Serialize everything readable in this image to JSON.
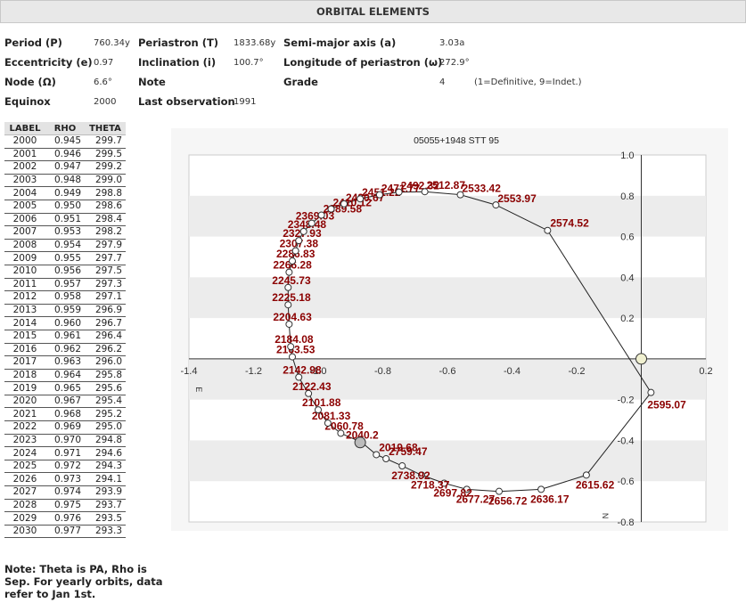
{
  "header": {
    "title": "ORBITAL ELEMENTS"
  },
  "elements": {
    "period_label": "Period (P)",
    "period_value": "760.34y",
    "periastron_label": "Periastron (T)",
    "periastron_value": "1833.68y",
    "semimajor_label": "Semi-major axis (a)",
    "semimajor_value": "3.03a",
    "ecc_label": "Eccentricity (e)",
    "ecc_value": "0.97",
    "incl_label": "Inclination (i)",
    "incl_value": "100.7°",
    "longperi_label": "Longitude of periastron (ω)",
    "longperi_value": "272.9°",
    "node_label": "Node (Ω)",
    "node_value": "6.6°",
    "note_label": "Note",
    "note_value": "",
    "grade_label": "Grade",
    "grade_value": "4",
    "grade_note": "(1=Definitive, 9=Indet.)",
    "equinox_label": "Equinox",
    "equinox_value": "2000",
    "lastobs_label": "Last observation",
    "lastobs_value": "1991"
  },
  "ephemeris": {
    "headers": [
      "LABEL",
      "RHO",
      "THETA"
    ],
    "rows": [
      [
        "2000",
        "0.945",
        "299.7"
      ],
      [
        "2001",
        "0.946",
        "299.5"
      ],
      [
        "2002",
        "0.947",
        "299.2"
      ],
      [
        "2003",
        "0.948",
        "299.0"
      ],
      [
        "2004",
        "0.949",
        "298.8"
      ],
      [
        "2005",
        "0.950",
        "298.6"
      ],
      [
        "2006",
        "0.951",
        "298.4"
      ],
      [
        "2007",
        "0.953",
        "298.2"
      ],
      [
        "2008",
        "0.954",
        "297.9"
      ],
      [
        "2009",
        "0.955",
        "297.7"
      ],
      [
        "2010",
        "0.956",
        "297.5"
      ],
      [
        "2011",
        "0.957",
        "297.3"
      ],
      [
        "2012",
        "0.958",
        "297.1"
      ],
      [
        "2013",
        "0.959",
        "296.9"
      ],
      [
        "2014",
        "0.960",
        "296.7"
      ],
      [
        "2015",
        "0.961",
        "296.4"
      ],
      [
        "2016",
        "0.962",
        "296.2"
      ],
      [
        "2017",
        "0.963",
        "296.0"
      ],
      [
        "2018",
        "0.964",
        "295.8"
      ],
      [
        "2019",
        "0.965",
        "295.6"
      ],
      [
        "2020",
        "0.967",
        "295.4"
      ],
      [
        "2021",
        "0.968",
        "295.2"
      ],
      [
        "2022",
        "0.969",
        "295.0"
      ],
      [
        "2023",
        "0.970",
        "294.8"
      ],
      [
        "2024",
        "0.971",
        "294.6"
      ],
      [
        "2025",
        "0.972",
        "294.3"
      ],
      [
        "2026",
        "0.973",
        "294.1"
      ],
      [
        "2027",
        "0.974",
        "293.9"
      ],
      [
        "2028",
        "0.975",
        "293.7"
      ],
      [
        "2029",
        "0.976",
        "293.5"
      ],
      [
        "2030",
        "0.977",
        "293.3"
      ]
    ]
  },
  "note": "Note: Theta is PA, Rho is Sep. For yearly orbits, data refer to Jan 1st.",
  "chart_data": {
    "type": "scatter",
    "title": "05055+1948 STT  95",
    "xlim": [
      -1.4,
      0.2
    ],
    "ylim": [
      -0.8,
      1.0
    ],
    "x_ticks": [
      "-1.4",
      "-1.2",
      "-1.0",
      "-0.8",
      "-0.6",
      "-0.4",
      "-0.2",
      "0.2"
    ],
    "y_ticks": [
      "1.0",
      "0.8",
      "0.6",
      "0.4",
      "0.2",
      "-0.2",
      "-0.4",
      "-0.6",
      "-0.8"
    ],
    "east_label": "E",
    "north_label": "N",
    "colors": {
      "label": "#8b0000",
      "line": "#222222",
      "band": "#ececec",
      "axis": "#333333"
    },
    "primary": {
      "x": 0.0,
      "y": 0.0
    },
    "current_position": {
      "x": -0.87,
      "y": -0.41
    },
    "orbit": [
      {
        "label": "2019.68",
        "x": -0.82,
        "y": -0.47
      },
      {
        "label": "2040.2",
        "x": -0.865,
        "y": -0.41
      },
      {
        "label": "2060.78",
        "x": -0.93,
        "y": -0.365
      },
      {
        "label": "2081.33",
        "x": -0.97,
        "y": -0.315
      },
      {
        "label": "2101.88",
        "x": -1.0,
        "y": -0.25
      },
      {
        "label": "2122.43",
        "x": -1.03,
        "y": -0.17
      },
      {
        "label": "2142.98",
        "x": -1.06,
        "y": -0.09
      },
      {
        "label": "2163.53",
        "x": -1.08,
        "y": 0.01
      },
      {
        "label": "2184.08",
        "x": -1.085,
        "y": 0.06
      },
      {
        "label": "2204.63",
        "x": -1.09,
        "y": 0.17
      },
      {
        "label": "2225.18",
        "x": -1.093,
        "y": 0.265
      },
      {
        "label": "2245.73",
        "x": -1.093,
        "y": 0.35
      },
      {
        "label": "2266.28",
        "x": -1.09,
        "y": 0.425
      },
      {
        "label": "2286.83",
        "x": -1.08,
        "y": 0.48
      },
      {
        "label": "2307.38",
        "x": -1.07,
        "y": 0.53
      },
      {
        "label": "2327.93",
        "x": -1.06,
        "y": 0.58
      },
      {
        "label": "2348.48",
        "x": -1.045,
        "y": 0.625
      },
      {
        "label": "2369.03",
        "x": -1.02,
        "y": 0.665
      },
      {
        "label": "2389.58",
        "x": -0.99,
        "y": 0.705
      },
      {
        "label": "2410.12",
        "x": -0.96,
        "y": 0.735
      },
      {
        "label": "2430.67",
        "x": -0.92,
        "y": 0.76
      },
      {
        "label": "2451.22",
        "x": -0.87,
        "y": 0.785
      },
      {
        "label": "2471.77",
        "x": -0.81,
        "y": 0.805
      },
      {
        "label": "2492.32",
        "x": -0.75,
        "y": 0.818
      },
      {
        "label": "2512.87",
        "x": -0.67,
        "y": 0.82
      },
      {
        "label": "2533.42",
        "x": -0.56,
        "y": 0.805
      },
      {
        "label": "2553.97",
        "x": -0.45,
        "y": 0.755
      },
      {
        "label": "2574.52",
        "x": -0.29,
        "y": 0.63
      },
      {
        "label": "2595.07",
        "x": 0.03,
        "y": -0.165
      },
      {
        "label": "2615.62",
        "x": -0.17,
        "y": -0.57
      },
      {
        "label": "2636.17",
        "x": -0.31,
        "y": -0.64
      },
      {
        "label": "2656.72",
        "x": -0.44,
        "y": -0.65
      },
      {
        "label": "2677.27",
        "x": -0.54,
        "y": -0.64
      },
      {
        "label": "2697.82",
        "x": -0.61,
        "y": -0.61
      },
      {
        "label": "2718.37",
        "x": -0.68,
        "y": -0.57
      },
      {
        "label": "2738.92",
        "x": -0.74,
        "y": -0.525
      },
      {
        "label": "2759.47",
        "x": -0.79,
        "y": -0.49
      }
    ]
  }
}
